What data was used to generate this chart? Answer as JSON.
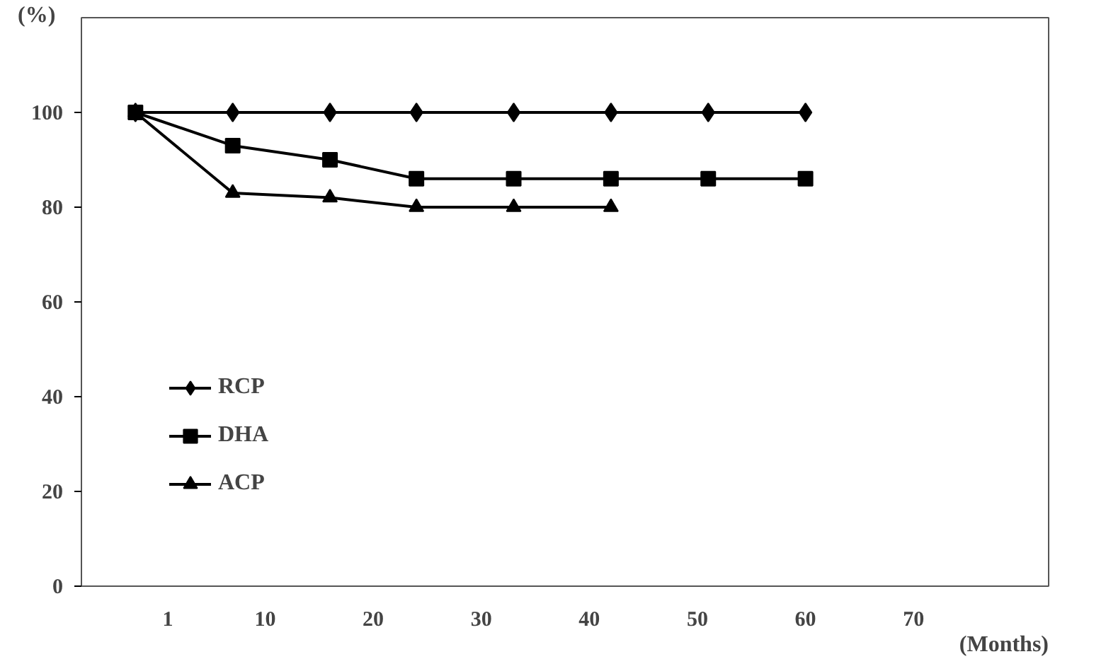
{
  "chart_data": {
    "type": "line",
    "ylabel": "(%)",
    "xlabel": "(Months)",
    "xlim": [
      -7,
      82.5
    ],
    "xticks": [
      1,
      10,
      20,
      30,
      40,
      50,
      60,
      70
    ],
    "ylim": [
      0,
      120
    ],
    "yticks": [
      0,
      20,
      40,
      60,
      80,
      100
    ],
    "x": [
      -2,
      7,
      16,
      24,
      33,
      42,
      51,
      60
    ],
    "series": [
      {
        "name": "RCP",
        "color": "#000000",
        "marker": "diamond",
        "values": [
          100,
          100,
          100,
          100,
          100,
          100,
          100,
          100
        ]
      },
      {
        "name": "DHA",
        "color": "#000000",
        "marker": "square",
        "values": [
          100,
          93,
          90,
          86,
          86,
          86,
          86,
          86
        ]
      },
      {
        "name": "ACP",
        "color": "#000000",
        "marker": "triangle",
        "values": [
          100,
          83,
          82,
          80,
          80,
          80,
          null,
          null
        ]
      }
    ],
    "legend": "bottom left",
    "grid": false,
    "line_style": "solid"
  }
}
